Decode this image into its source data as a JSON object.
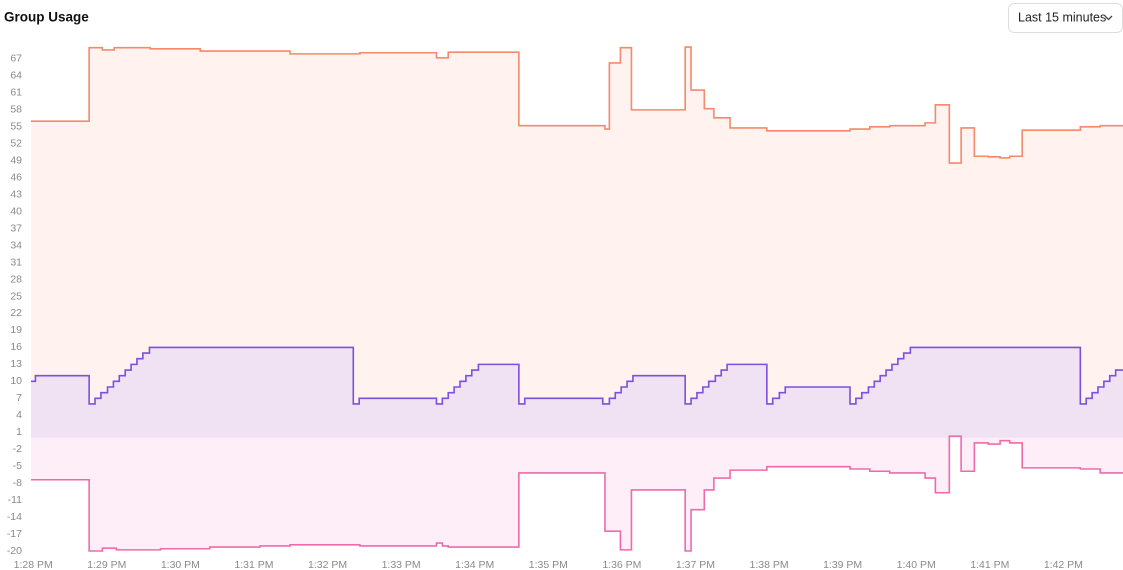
{
  "header": {
    "title": "Group Usage",
    "range_selector": "Last 15 minutes"
  },
  "chart_data": {
    "type": "area",
    "step": "after",
    "xlim": [
      27.97,
      42.81
    ],
    "ylim": [
      -20,
      70
    ],
    "xticks": [
      {
        "value": 28,
        "label": "1:28 PM"
      },
      {
        "value": 29,
        "label": "1:29 PM"
      },
      {
        "value": 30,
        "label": "1:30 PM"
      },
      {
        "value": 31,
        "label": "1:31 PM"
      },
      {
        "value": 32,
        "label": "1:32 PM"
      },
      {
        "value": 33,
        "label": "1:33 PM"
      },
      {
        "value": 34,
        "label": "1:34 PM"
      },
      {
        "value": 35,
        "label": "1:35 PM"
      },
      {
        "value": 36,
        "label": "1:36 PM"
      },
      {
        "value": 37,
        "label": "1:37 PM"
      },
      {
        "value": 38,
        "label": "1:38 PM"
      },
      {
        "value": 39,
        "label": "1:39 PM"
      },
      {
        "value": 40,
        "label": "1:40 PM"
      },
      {
        "value": 41,
        "label": "1:41 PM"
      },
      {
        "value": 42,
        "label": "1:42 PM"
      }
    ],
    "yticks": [
      67,
      64,
      61,
      58,
      55,
      52,
      49,
      46,
      43,
      40,
      37,
      34,
      31,
      28,
      25,
      22,
      19,
      16,
      13,
      10,
      7,
      4,
      1,
      -2,
      -5,
      -8,
      -11,
      -14,
      -17,
      -20
    ],
    "grid": false,
    "series": [
      {
        "color": "#f4896b",
        "fill": "#fff2ef",
        "x": [
          27.97,
          28.76,
          28.94,
          29.1,
          29.59,
          30.27,
          31.49,
          32.44,
          33.48,
          33.64,
          34.6,
          35.77,
          35.83,
          35.98,
          36.13,
          36.86,
          36.94,
          37.12,
          37.25,
          37.47,
          37.97,
          39.1,
          39.37,
          39.64,
          40.12,
          40.26,
          40.45,
          40.61,
          40.79,
          40.98,
          41.14,
          41.27,
          41.44,
          42.23,
          42.5
        ],
        "values": [
          56.0,
          69.0,
          68.6,
          69.0,
          68.8,
          68.4,
          67.9,
          68.1,
          67.2,
          68.2,
          55.2,
          54.6,
          66.3,
          69.0,
          58.0,
          69.1,
          61.5,
          58.2,
          56.6,
          54.8,
          54.3,
          54.6,
          55.0,
          55.2,
          55.7,
          58.9,
          48.6,
          54.8,
          49.8,
          49.7,
          49.5,
          49.8,
          54.4,
          55.0,
          55.2
        ]
      },
      {
        "color": "#7b4fe0",
        "fill": "#f0e2f2",
        "x": [
          27.97,
          28.03,
          28.76,
          28.84,
          28.92,
          29.01,
          29.09,
          29.17,
          29.25,
          29.33,
          29.41,
          29.49,
          29.58,
          32.35,
          32.43,
          33.48,
          33.56,
          33.64,
          33.72,
          33.8,
          33.88,
          33.96,
          34.05,
          34.6,
          34.68,
          35.74,
          35.83,
          35.91,
          35.99,
          36.07,
          36.15,
          36.86,
          36.94,
          37.02,
          37.1,
          37.18,
          37.27,
          37.35,
          37.43,
          37.97,
          38.05,
          38.14,
          38.22,
          39.1,
          39.18,
          39.26,
          39.35,
          39.43,
          39.51,
          39.59,
          39.67,
          39.75,
          39.83,
          39.92,
          42.23,
          42.31,
          42.39,
          42.47,
          42.55,
          42.63,
          42.71
        ],
        "values": [
          10,
          11,
          6,
          7,
          8,
          9,
          10,
          11,
          12,
          13,
          14,
          15,
          16,
          6,
          7,
          6,
          7,
          8,
          9,
          10,
          11,
          12,
          13,
          6,
          7,
          6,
          7,
          8,
          9,
          10,
          11,
          6,
          7,
          8,
          9,
          10,
          11,
          12,
          13,
          6,
          7,
          8,
          9,
          6,
          7,
          8,
          9,
          10,
          11,
          12,
          13,
          14,
          15,
          16,
          6,
          7,
          8,
          9,
          10,
          11,
          12
        ]
      },
      {
        "color": "#f06aab",
        "fill": "#fdeef7",
        "x": [
          27.97,
          28.76,
          28.94,
          29.13,
          29.73,
          30.4,
          31.08,
          31.49,
          32.44,
          33.48,
          33.56,
          33.64,
          34.6,
          35.77,
          35.98,
          36.13,
          36.86,
          36.94,
          37.12,
          37.25,
          37.47,
          37.97,
          39.1,
          39.37,
          39.64,
          40.12,
          40.26,
          40.45,
          40.61,
          40.79,
          40.98,
          41.14,
          41.27,
          41.44,
          42.23,
          42.5
        ],
        "values": [
          -7.4,
          -20,
          -19.5,
          -19.8,
          -19.6,
          -19.3,
          -19.1,
          -18.9,
          -19.1,
          -18.6,
          -19.1,
          -19.3,
          -6.2,
          -16.5,
          -19.8,
          -9.2,
          -20,
          -12.7,
          -9.2,
          -7.1,
          -5.7,
          -5.1,
          -5.5,
          -5.9,
          -6.2,
          -7.1,
          -9.7,
          0.3,
          -5.9,
          -0.9,
          -1.1,
          -0.5,
          -0.9,
          -5.3,
          -5.5,
          -6.2
        ]
      }
    ]
  }
}
